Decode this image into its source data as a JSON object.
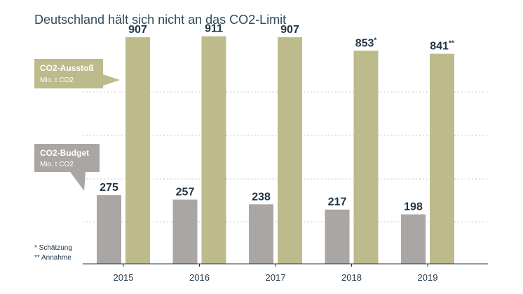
{
  "chart_data": {
    "type": "bar",
    "title": "Deutschland hält sich nicht an das CO2-Limit",
    "categories": [
      "2015",
      "2016",
      "2017",
      "2018",
      "2019"
    ],
    "series": [
      {
        "name": "CO2-Budget",
        "unit": "Mio. t CO2",
        "color": "#aaa6a4",
        "values": [
          275,
          257,
          238,
          217,
          198
        ],
        "value_labels": [
          "275",
          "257",
          "238",
          "217",
          "198"
        ],
        "marks": [
          "",
          "",
          "",
          "",
          ""
        ]
      },
      {
        "name": "CO2-Ausstoß",
        "unit": "Mio. t CO2",
        "color": "#bdba8b",
        "values": [
          907,
          911,
          907,
          853,
          841
        ],
        "value_labels": [
          "907",
          "911",
          "907",
          "853",
          "841"
        ],
        "marks": [
          "",
          "",
          "",
          "*",
          "**"
        ]
      }
    ],
    "ylim": [
      0,
      1000
    ],
    "grid": true,
    "legend": "left",
    "footnotes": [
      {
        "symbol": "*",
        "text": "Schätzung"
      },
      {
        "symbol": "**",
        "text": "Annahme"
      }
    ]
  }
}
